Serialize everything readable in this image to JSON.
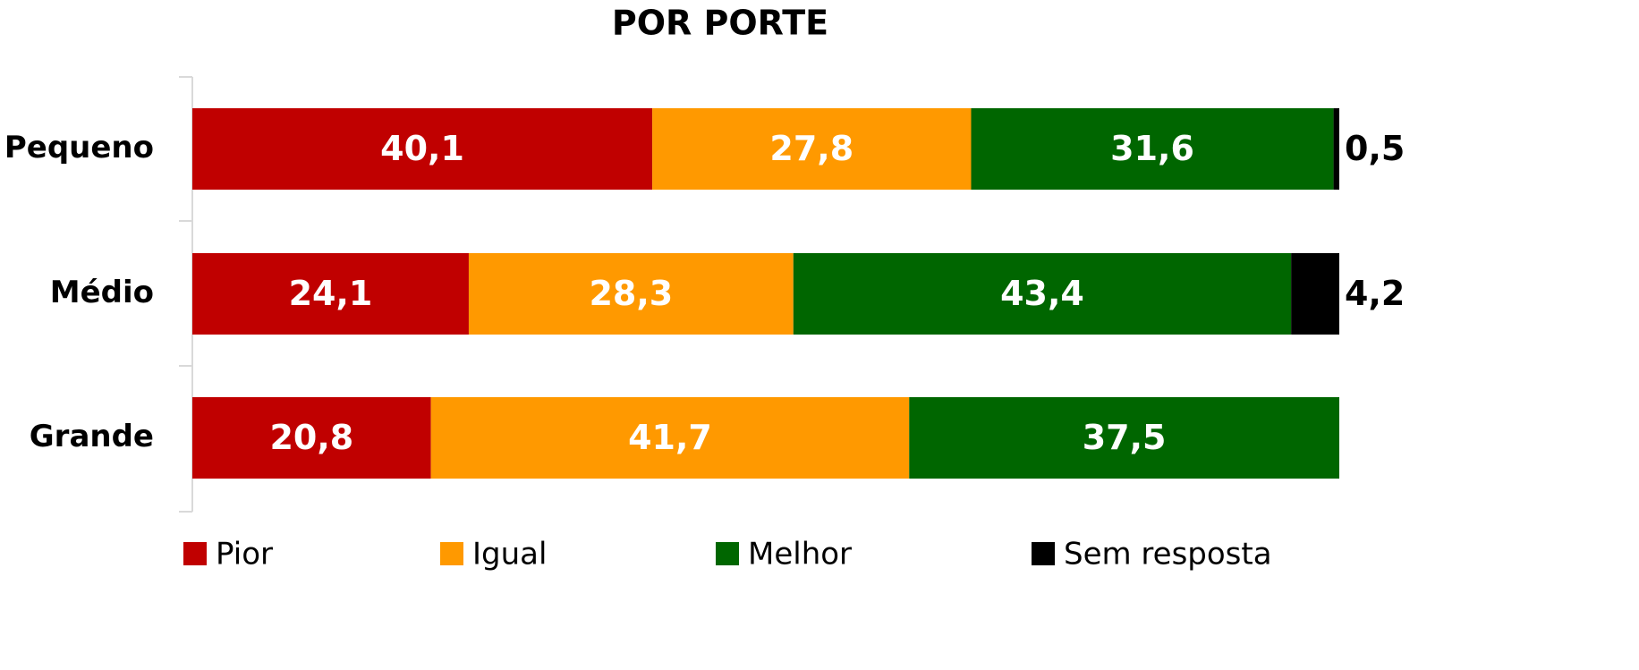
{
  "chart_data": {
    "type": "stacked_barh",
    "title": "POR PORTE",
    "categories": [
      "Pequeno",
      "Médio",
      "Grande"
    ],
    "series": [
      {
        "name": "Pior",
        "color": "#c00000",
        "values": [
          40.1,
          24.1,
          20.8
        ],
        "value_labels": [
          "40,1",
          "24,1",
          "20,8"
        ]
      },
      {
        "name": "Igual",
        "color": "#ff9900",
        "values": [
          27.8,
          28.3,
          41.7
        ],
        "value_labels": [
          "27,8",
          "28,3",
          "41,7"
        ]
      },
      {
        "name": "Melhor",
        "color": "#006600",
        "values": [
          31.6,
          43.4,
          37.5
        ],
        "value_labels": [
          "31,6",
          "43,4",
          "37,5"
        ]
      },
      {
        "name": "Sem resposta",
        "color": "#000000",
        "values": [
          0.5,
          4.2,
          null
        ],
        "value_labels": [
          "0,5",
          "4,2",
          null
        ]
      }
    ],
    "xlim": [
      0,
      100
    ],
    "legend": "bottom"
  }
}
